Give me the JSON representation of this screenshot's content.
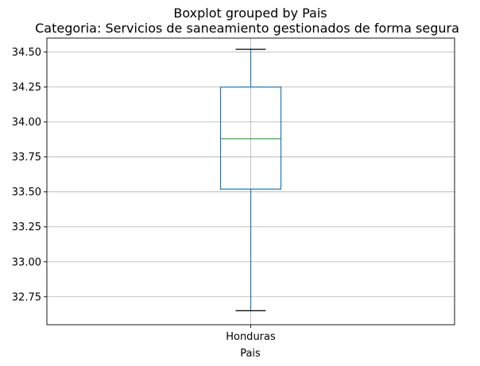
{
  "chart_data": {
    "type": "boxplot",
    "suptitle": "Boxplot grouped by Pais",
    "title": "Categoria: Servicios de saneamiento gestionados de forma segura",
    "xlabel": "Pais",
    "ylabel": "",
    "categories": [
      "Honduras"
    ],
    "boxes": [
      {
        "category": "Honduras",
        "whisker_low": 32.65,
        "q1": 33.52,
        "median": 33.88,
        "q3": 34.25,
        "whisker_high": 34.52
      }
    ],
    "ylim": [
      32.55,
      34.6
    ],
    "yticks": [
      32.75,
      33.0,
      33.25,
      33.5,
      33.75,
      34.0,
      34.25,
      34.5
    ],
    "ytick_labels": [
      "32.75",
      "33.00",
      "33.25",
      "33.50",
      "33.75",
      "34.00",
      "34.25",
      "34.50"
    ],
    "grid": true,
    "colors": {
      "box": "#1f77b4",
      "median": "#2ca02c",
      "grid": "#b0b0b0",
      "axis": "#000000"
    }
  }
}
